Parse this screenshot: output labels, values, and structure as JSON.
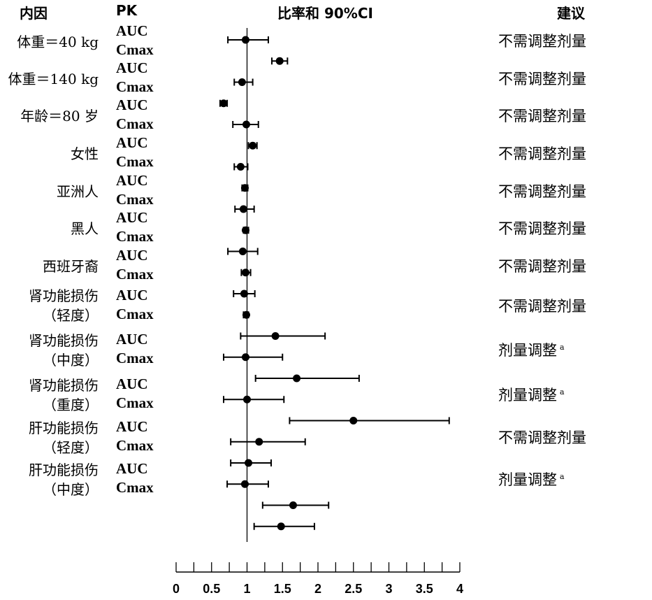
{
  "headers": {
    "factor": "内因",
    "pk": "PK",
    "ratio": "比率和 90%CI",
    "recommendation": "建议"
  },
  "groups": [
    {
      "factor": [
        "体重＝40 kg"
      ],
      "recommendation": "不需调整剂量",
      "superscript": ""
    },
    {
      "factor": [
        "体重＝140 kg"
      ],
      "recommendation": "不需调整剂量",
      "superscript": ""
    },
    {
      "factor": [
        "年龄＝80 岁"
      ],
      "recommendation": "不需调整剂量",
      "superscript": ""
    },
    {
      "factor": [
        "女性"
      ],
      "recommendation": "不需调整剂量",
      "superscript": ""
    },
    {
      "factor": [
        "亚洲人"
      ],
      "recommendation": "不需调整剂量",
      "superscript": ""
    },
    {
      "factor": [
        "黑人"
      ],
      "recommendation": "不需调整剂量",
      "superscript": ""
    },
    {
      "factor": [
        "西班牙裔"
      ],
      "recommendation": "不需调整剂量",
      "superscript": ""
    },
    {
      "factor": [
        "肾功能损伤",
        "（轻度）"
      ],
      "recommendation": "不需调整剂量",
      "superscript": ""
    },
    {
      "factor": [
        "肾功能损伤",
        "（中度）"
      ],
      "recommendation": "剂量调整",
      "superscript": "a"
    },
    {
      "factor": [
        "肾功能损伤",
        "（重度）"
      ],
      "recommendation": "剂量调整",
      "superscript": "a"
    },
    {
      "factor": [
        "肝功能损伤",
        "（轻度）"
      ],
      "recommendation": "不需调整剂量",
      "superscript": ""
    },
    {
      "factor": [
        "肝功能损伤",
        "（中度）"
      ],
      "recommendation": "剂量调整",
      "superscript": "a"
    }
  ],
  "pk_labels": {
    "auc": "AUC",
    "cmax": "Cmax"
  },
  "chart_data": {
    "type": "forest",
    "title": "比率和 90%CI",
    "xlim": [
      0,
      4
    ],
    "reference_line": 1.0,
    "tick_labels": [
      "0",
      "0.5",
      "1",
      "1.5",
      "2",
      "2.5",
      "3",
      "3.5",
      "4"
    ],
    "tick_values": [
      0,
      0.5,
      1,
      1.5,
      2,
      2.5,
      3,
      3.5,
      4
    ],
    "minor_tick_step": 0.25,
    "points": [
      {
        "estimate": 0.98,
        "lower": 0.73,
        "upper": 1.3
      },
      {
        "estimate": 1.46,
        "lower": 1.35,
        "upper": 1.57
      },
      {
        "estimate": 0.93,
        "lower": 0.82,
        "upper": 1.08
      },
      {
        "estimate": 0.67,
        "lower": 0.62,
        "upper": 0.72
      },
      {
        "estimate": 0.99,
        "lower": 0.8,
        "upper": 1.16
      },
      {
        "estimate": 1.08,
        "lower": 1.02,
        "upper": 1.14
      },
      {
        "estimate": 0.91,
        "lower": 0.82,
        "upper": 1.01
      },
      {
        "estimate": 0.97,
        "lower": 0.93,
        "upper": 1.01
      },
      {
        "estimate": 0.95,
        "lower": 0.83,
        "upper": 1.1
      },
      {
        "estimate": 0.98,
        "lower": 0.95,
        "upper": 1.02
      },
      {
        "estimate": 0.94,
        "lower": 0.73,
        "upper": 1.15
      },
      {
        "estimate": 0.98,
        "lower": 0.92,
        "upper": 1.05
      },
      {
        "estimate": 0.96,
        "lower": 0.81,
        "upper": 1.11
      },
      {
        "estimate": 0.99,
        "lower": 0.95,
        "upper": 1.02
      },
      {
        "estimate": 1.4,
        "lower": 0.91,
        "upper": 2.1
      },
      {
        "estimate": 0.98,
        "lower": 0.67,
        "upper": 1.5
      },
      {
        "estimate": 1.7,
        "lower": 1.12,
        "upper": 2.58
      },
      {
        "estimate": 1.0,
        "lower": 0.67,
        "upper": 1.52
      },
      {
        "estimate": 2.5,
        "lower": 1.6,
        "upper": 3.85
      },
      {
        "estimate": 1.17,
        "lower": 0.77,
        "upper": 1.82
      },
      {
        "estimate": 1.02,
        "lower": 0.77,
        "upper": 1.34
      },
      {
        "estimate": 0.97,
        "lower": 0.72,
        "upper": 1.3
      },
      {
        "estimate": 1.65,
        "lower": 1.22,
        "upper": 2.15
      },
      {
        "estimate": 1.48,
        "lower": 1.1,
        "upper": 1.95
      }
    ]
  }
}
